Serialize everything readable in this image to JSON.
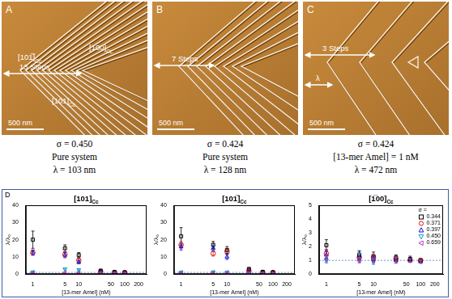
{
  "figure": {
    "panels": [
      {
        "label": "A",
        "annotations": [
          {
            "text": "[101̅]",
            "sub": "Cc"
          },
          {
            "text": "[100]",
            "sub": "Cc"
          },
          {
            "text": "[101]",
            "sub": "Cc"
          },
          {
            "text": "13 Steps"
          }
        ],
        "scale_bar": "500 nm",
        "caption": [
          "σ = 0.450",
          "Pure system",
          "λ = 103 nm"
        ]
      },
      {
        "label": "B",
        "annotations": [
          {
            "text": "7 Steps"
          }
        ],
        "scale_bar": "500 nm",
        "caption": [
          "σ = 0.424",
          "Pure system",
          "λ = 128 nm"
        ]
      },
      {
        "label": "C",
        "annotations": [
          {
            "text": "3 Steps"
          },
          {
            "text": "λ"
          }
        ],
        "scale_bar": "500 nm",
        "caption": [
          "σ = 0.424",
          "[13-mer Amel] = 1 nM",
          "λ = 472 nm"
        ]
      }
    ],
    "d_label": "D"
  },
  "chart_data": [
    {
      "type": "scatter",
      "title": "[101]",
      "title_sub": "Cc",
      "x_label": "[13-mer Amel] (nM)",
      "y_label": "λ/λ₀",
      "log": "x",
      "xlim": [
        0.7,
        300
      ],
      "xticks": [
        1,
        5,
        10,
        50,
        100,
        200
      ],
      "ylim": [
        0,
        40
      ],
      "yticks": [
        0,
        10,
        20,
        30,
        40
      ],
      "hline": 1,
      "x": [
        1,
        5,
        10,
        30,
        60,
        100
      ],
      "series": [
        {
          "name": "0.344",
          "color": "#000000",
          "marker": "square",
          "values": [
            20,
            15,
            11,
            2,
            1.2,
            1
          ],
          "errors": [
            5,
            2,
            1.5,
            0.5,
            0.3,
            0.2
          ]
        },
        {
          "name": "0.371",
          "color": "#e01010",
          "marker": "circle",
          "values": [
            12.5,
            11.5,
            8,
            1.5,
            1,
            0.9
          ],
          "errors": [
            1.5,
            1.5,
            1,
            0.3,
            0.2,
            0.2
          ]
        },
        {
          "name": "0.397",
          "color": "#1010e0",
          "marker": "triangle-up",
          "values": [
            12.5,
            11,
            7,
            1.4,
            1,
            1
          ],
          "errors": [
            1.5,
            1.5,
            1,
            0.3,
            0.2,
            0.2
          ]
        },
        {
          "name": "0.450",
          "color": "#10a0c0",
          "marker": "triangle-down",
          "values": [
            1.2,
            3,
            2.5,
            1,
            0.9,
            0.8
          ],
          "errors": [
            0.3,
            0.5,
            0.4,
            0.2,
            0.2,
            0.2
          ]
        },
        {
          "name": "0.659",
          "color": "#c030c0",
          "marker": "triangle-left",
          "values": [
            1,
            0.9,
            1,
            0.9,
            0.9,
            0.9
          ],
          "errors": [
            0.2,
            0.2,
            0.2,
            0.2,
            0.2,
            0.2
          ]
        }
      ]
    },
    {
      "type": "scatter",
      "title": "[101̅]",
      "title_sub": "Cc",
      "x_label": "[13-mer Amel] (nM)",
      "y_label": "λ/λ₀",
      "log": "x",
      "xlim": [
        0.7,
        300
      ],
      "xticks": [
        1,
        5,
        10,
        50,
        100,
        200
      ],
      "ylim": [
        0,
        40
      ],
      "yticks": [
        0,
        10,
        20,
        30,
        40
      ],
      "hline": 1,
      "x": [
        1,
        5,
        10,
        30,
        60,
        100
      ],
      "series": [
        {
          "name": "0.344",
          "color": "#000000",
          "marker": "square",
          "values": [
            22,
            17,
            14,
            3,
            1.3,
            1
          ],
          "errors": [
            5,
            2,
            2,
            0.5,
            0.3,
            0.2
          ]
        },
        {
          "name": "0.371",
          "color": "#e01010",
          "marker": "circle",
          "values": [
            17,
            12,
            13,
            2,
            1,
            1
          ],
          "errors": [
            2,
            1.5,
            1.5,
            0.4,
            0.2,
            0.2
          ]
        },
        {
          "name": "0.397",
          "color": "#1010e0",
          "marker": "triangle-up",
          "values": [
            16,
            15,
            10,
            1.5,
            1,
            0.9
          ],
          "errors": [
            2,
            1.5,
            1.5,
            0.3,
            0.2,
            0.2
          ]
        },
        {
          "name": "0.450",
          "color": "#10a0c0",
          "marker": "triangle-down",
          "values": [
            1,
            1.2,
            1,
            1,
            1,
            0.9
          ],
          "errors": [
            0.2,
            0.3,
            0.2,
            0.2,
            0.2,
            0.2
          ]
        },
        {
          "name": "0.659",
          "color": "#c030c0",
          "marker": "triangle-left",
          "values": [
            1,
            1,
            1,
            1,
            0.9,
            0.9
          ],
          "errors": [
            0.2,
            0.2,
            0.2,
            0.2,
            0.2,
            0.2
          ]
        }
      ]
    },
    {
      "type": "scatter",
      "title": "[1̅00]",
      "title_sub": "Cc",
      "x_label": "[13-mer Amel] (nM)",
      "y_label": "λ/λ₀",
      "log": "x",
      "xlim": [
        0.7,
        300
      ],
      "xticks": [
        1,
        5,
        10,
        50,
        100,
        200
      ],
      "ylim": [
        0,
        5
      ],
      "yticks": [
        0,
        1,
        2,
        3,
        4,
        5
      ],
      "hline": 1,
      "legend": "top right",
      "legend_title": "σ =",
      "x": [
        1,
        5,
        10,
        30,
        60,
        100
      ],
      "series": [
        {
          "name": "0.344",
          "color": "#000000",
          "marker": "square",
          "values": [
            2.1,
            1.4,
            1.3,
            1.2,
            1.1,
            1
          ],
          "errors": [
            0.4,
            0.3,
            0.3,
            0.2,
            0.2,
            0.1
          ]
        },
        {
          "name": "0.371",
          "color": "#e01010",
          "marker": "circle",
          "values": [
            1.5,
            1.2,
            1.2,
            1.1,
            1,
            1
          ],
          "errors": [
            0.3,
            0.3,
            0.2,
            0.2,
            0.1,
            0.1
          ]
        },
        {
          "name": "0.397",
          "color": "#1010e0",
          "marker": "triangle-up",
          "values": [
            1.4,
            1.3,
            1.1,
            1,
            1,
            0.9
          ],
          "errors": [
            0.3,
            0.3,
            0.2,
            0.2,
            0.1,
            0.1
          ]
        },
        {
          "name": "0.450",
          "color": "#10a0c0",
          "marker": "triangle-down",
          "values": [
            1,
            1.2,
            0.9,
            1,
            1,
            0.9
          ],
          "errors": [
            0.2,
            0.3,
            0.2,
            0.2,
            0.1,
            0.1
          ]
        },
        {
          "name": "0.659",
          "color": "#c030c0",
          "marker": "triangle-left",
          "values": [
            1.1,
            1,
            1,
            1,
            1,
            0.9
          ],
          "errors": [
            0.2,
            0.2,
            0.2,
            0.2,
            0.1,
            0.1
          ]
        }
      ]
    }
  ]
}
